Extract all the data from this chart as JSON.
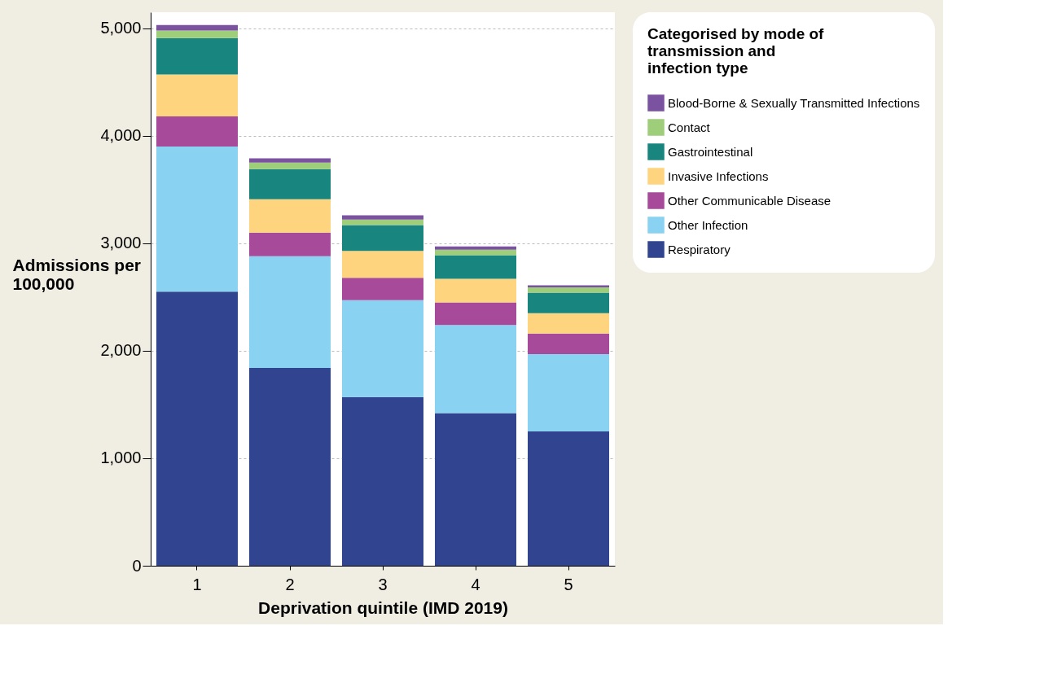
{
  "chart_data": {
    "type": "bar",
    "stacked": true,
    "categories": [
      "1",
      "2",
      "3",
      "4",
      "5"
    ],
    "xlabel": "Deprivation quintile (IMD 2019)",
    "ylabel": "Admissions per 100,000",
    "legend_title": "Categorised by mode of transmission and infection type",
    "series": [
      {
        "name": "Respiratory",
        "color": "#31448f",
        "values": [
          2550,
          1840,
          1570,
          1420,
          1250
        ]
      },
      {
        "name": "Other Infection",
        "color": "#89d2f1",
        "values": [
          1350,
          1040,
          900,
          820,
          720
        ]
      },
      {
        "name": "Other Communicable Disease",
        "color": "#a64a99",
        "values": [
          280,
          220,
          210,
          210,
          190
        ]
      },
      {
        "name": "Invasive Infections",
        "color": "#ffd47f",
        "values": [
          390,
          310,
          250,
          220,
          190
        ]
      },
      {
        "name": "Gastrointestinal",
        "color": "#18867e",
        "values": [
          340,
          280,
          240,
          220,
          190
        ]
      },
      {
        "name": "Contact",
        "color": "#9fce7a",
        "values": [
          70,
          60,
          50,
          50,
          50
        ]
      },
      {
        "name": "Blood-Borne & Sexually Transmitted Infections",
        "color": "#7b52a0",
        "values": [
          50,
          40,
          40,
          30,
          20
        ]
      }
    ],
    "ylim": [
      0,
      5150
    ],
    "yticks": [
      0,
      {
        "value": 1000,
        "label": "1,000"
      },
      {
        "value": 2000,
        "label": "2,000"
      },
      {
        "value": 3000,
        "label": "3,000"
      },
      {
        "value": 4000,
        "label": "4,000"
      },
      {
        "value": 5000,
        "label": "5,000"
      }
    ],
    "grid": "y",
    "legend": "top right"
  }
}
